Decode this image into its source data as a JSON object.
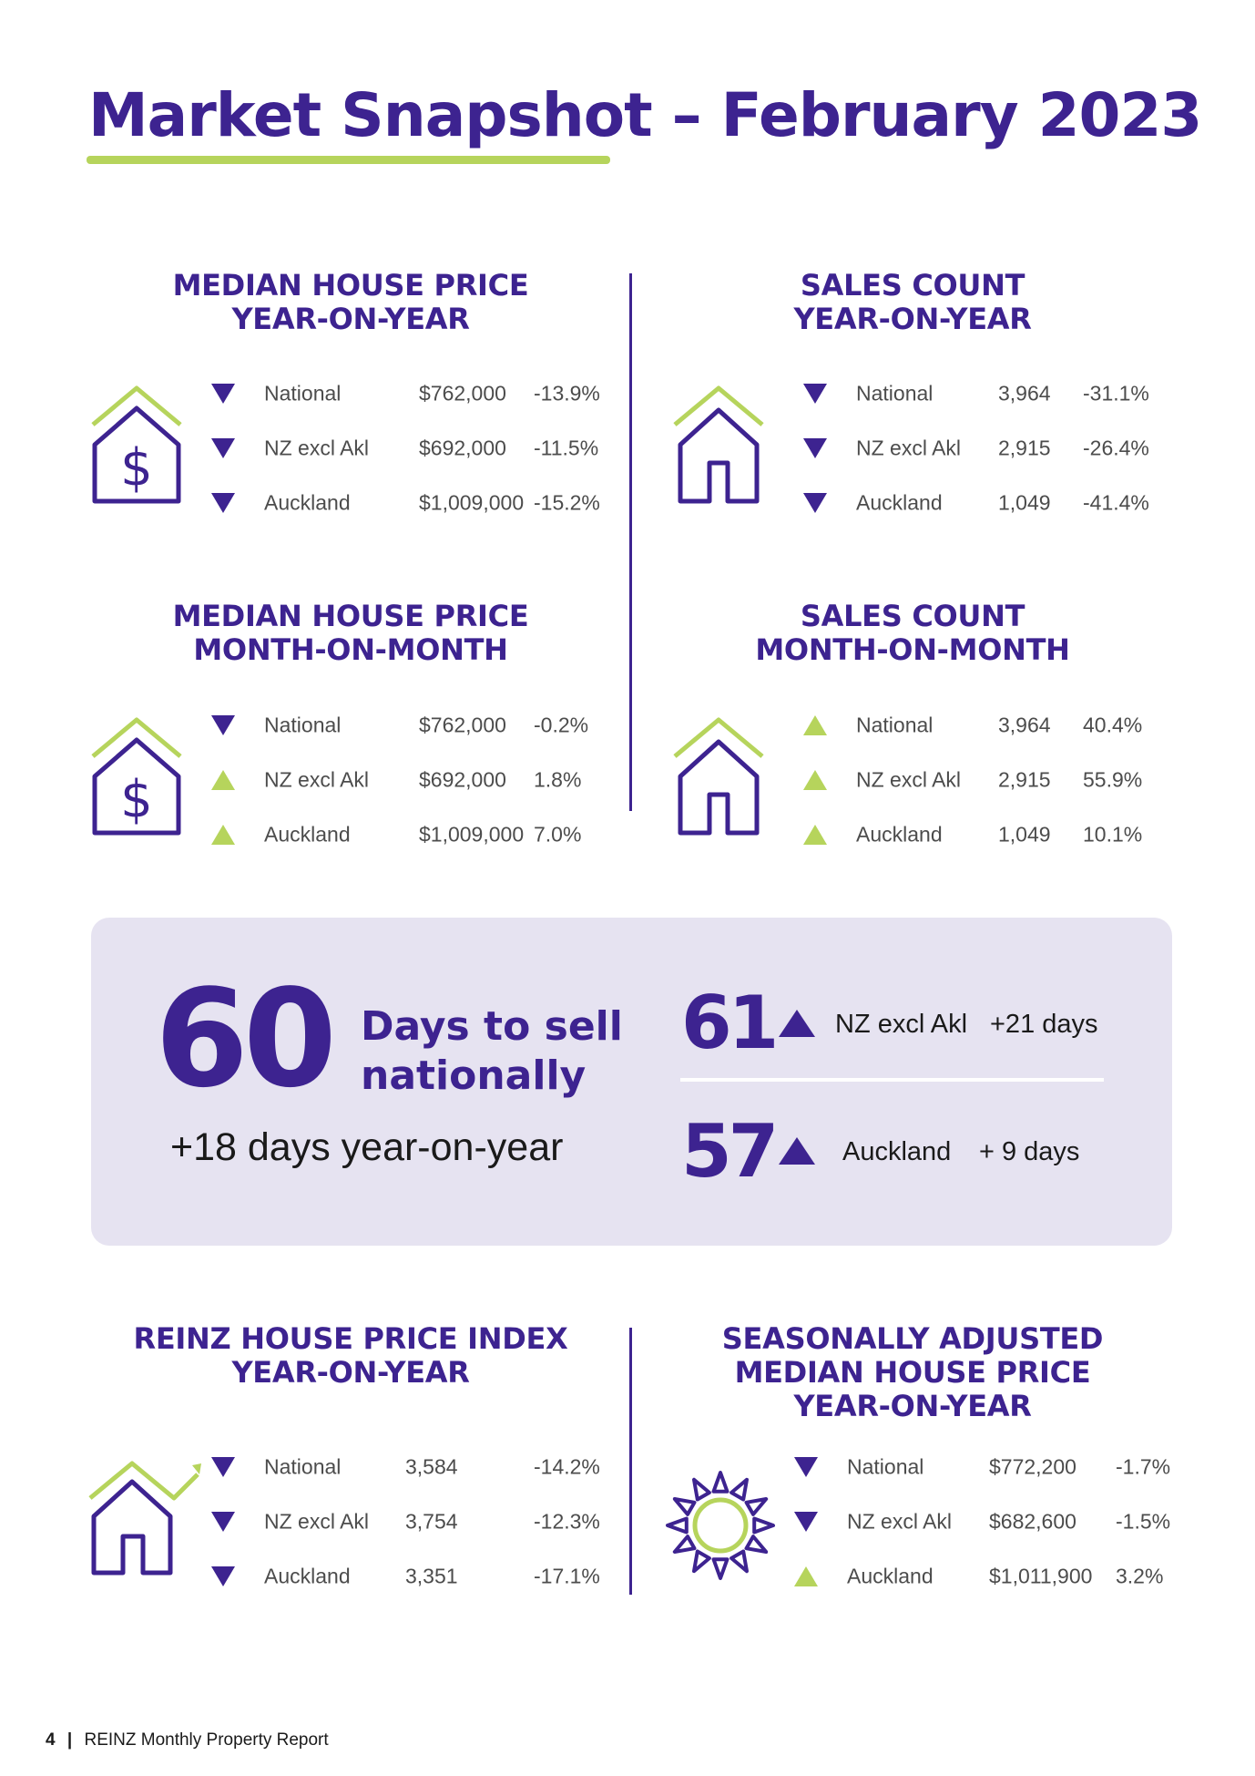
{
  "page_title": "Market Snapshot – February 2023",
  "colors": {
    "primary": "#3d2390",
    "accent": "#b6d45c",
    "box": "#e6e3f1"
  },
  "panels": {
    "median_yoy": {
      "title_line1": "MEDIAN HOUSE PRICE",
      "title_line2": "YEAR-ON-YEAR",
      "icon": "house-dollar-icon",
      "rows": [
        {
          "label": "National",
          "value": "$762,000",
          "change": "-13.9%",
          "direction": "down"
        },
        {
          "label": "NZ excl Akl",
          "value": "$692,000",
          "change": "-11.5%",
          "direction": "down"
        },
        {
          "label": "Auckland",
          "value": "$1,009,000",
          "change": "-15.2%",
          "direction": "down"
        }
      ]
    },
    "sales_yoy": {
      "title_line1": "SALES COUNT",
      "title_line2": "YEAR-ON-YEAR",
      "icon": "house-icon",
      "rows": [
        {
          "label": "National",
          "value": "3,964",
          "change": "-31.1%",
          "direction": "down"
        },
        {
          "label": "NZ excl Akl",
          "value": "2,915",
          "change": "-26.4%",
          "direction": "down"
        },
        {
          "label": "Auckland",
          "value": "1,049",
          "change": "-41.4%",
          "direction": "down"
        }
      ]
    },
    "median_mom": {
      "title_line1": "MEDIAN HOUSE PRICE",
      "title_line2": "MONTH-ON-MONTH",
      "icon": "house-dollar-icon",
      "rows": [
        {
          "label": "National",
          "value": "$762,000",
          "change": "-0.2%",
          "direction": "down"
        },
        {
          "label": "NZ excl Akl",
          "value": "$692,000",
          "change": "1.8%",
          "direction": "up"
        },
        {
          "label": "Auckland",
          "value": "$1,009,000",
          "change": "7.0%",
          "direction": "up"
        }
      ]
    },
    "sales_mom": {
      "title_line1": "SALES COUNT",
      "title_line2": "MONTH-ON-MONTH",
      "icon": "house-icon",
      "rows": [
        {
          "label": "National",
          "value": "3,964",
          "change": "40.4%",
          "direction": "up"
        },
        {
          "label": "NZ excl Akl",
          "value": "2,915",
          "change": "55.9%",
          "direction": "up"
        },
        {
          "label": "Auckland",
          "value": "1,049",
          "change": "10.1%",
          "direction": "up"
        }
      ]
    },
    "hpi_yoy": {
      "title_line1": "REINZ HOUSE PRICE INDEX",
      "title_line2": "YEAR-ON-YEAR",
      "icon": "house-trend-icon",
      "rows": [
        {
          "label": "National",
          "value": "3,584",
          "change": "-14.2%",
          "direction": "down"
        },
        {
          "label": "NZ excl Akl",
          "value": "3,754",
          "change": "-12.3%",
          "direction": "down"
        },
        {
          "label": "Auckland",
          "value": "3,351",
          "change": "-17.1%",
          "direction": "down"
        }
      ]
    },
    "seasonal_yoy": {
      "title_line1": "SEASONALLY ADJUSTED",
      "title_line2": "MEDIAN HOUSE PRICE",
      "title_line3": "YEAR-ON-YEAR",
      "icon": "sun-icon",
      "rows": [
        {
          "label": "National",
          "value": "$772,200",
          "change": "-1.7%",
          "direction": "down"
        },
        {
          "label": "NZ excl Akl",
          "value": "$682,600",
          "change": "-1.5%",
          "direction": "down"
        },
        {
          "label": "Auckland",
          "value": "$1,011,900",
          "change": "3.2%",
          "direction": "up"
        }
      ]
    }
  },
  "days_to_sell": {
    "national_days": "60",
    "national_line1": "Days to sell",
    "national_line2": "nationally",
    "national_yoy": "+18 days year-on-year",
    "regions": [
      {
        "days": "61",
        "label": "NZ excl Akl",
        "change": "+21 days",
        "direction": "up"
      },
      {
        "days": "57",
        "label": "Auckland",
        "change": "+ 9 days",
        "direction": "up"
      }
    ]
  },
  "footer": {
    "page_number": "4",
    "separator": "|",
    "report_name": "REINZ Monthly Property Report"
  }
}
